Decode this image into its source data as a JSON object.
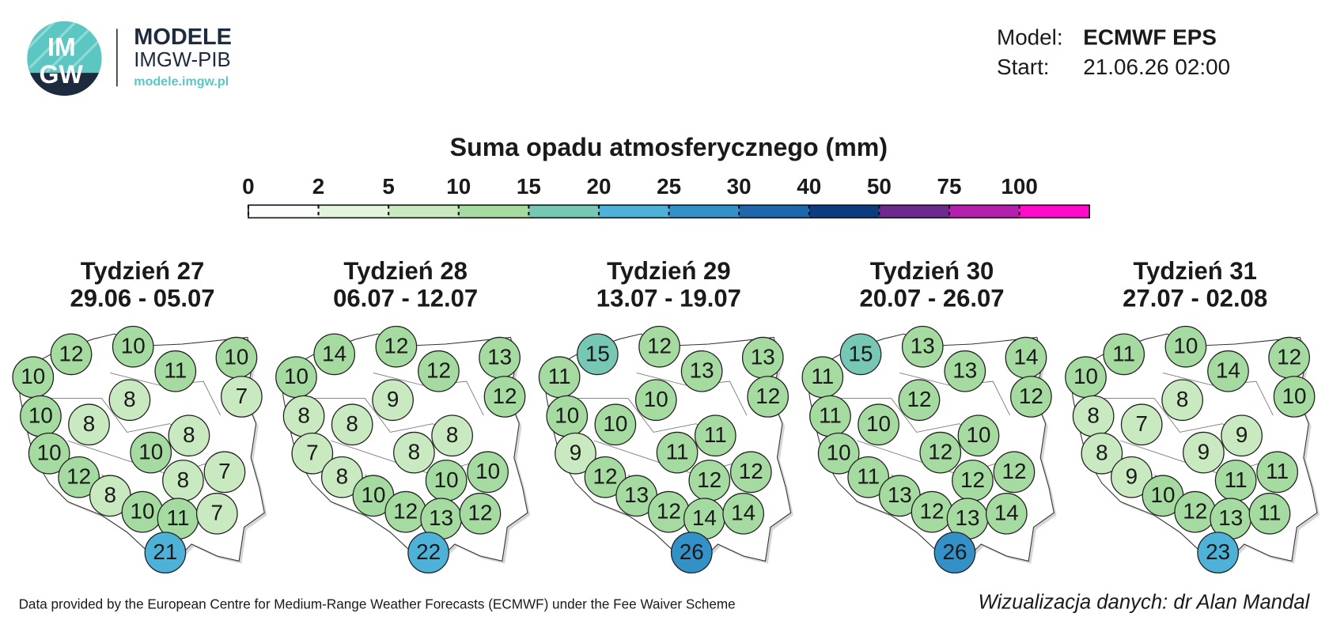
{
  "header": {
    "logo": {
      "top": "IM",
      "bottom": "GW"
    },
    "brand": "MODELE",
    "org": "IMGW-PIB",
    "url": "modele.imgw.pl",
    "model_label": "Model:",
    "model": "ECMWF EPS",
    "start_label": "Start:",
    "start": "21.06.26 02:00"
  },
  "legend": {
    "title": "Suma opadu atmosferycznego (mm)",
    "ticks": [
      0,
      2,
      5,
      10,
      15,
      20,
      25,
      30,
      40,
      50,
      75,
      100
    ],
    "colors": [
      "#fbfdfa",
      "#e3f4dd",
      "#c9eac1",
      "#a5dba0",
      "#76c8b4",
      "#4eb2d8",
      "#3391c8",
      "#1f67ad",
      "#0c3b80",
      "#6b2a8c",
      "#b51fb0",
      "#ff0acb"
    ]
  },
  "panels": [
    {
      "title": "Tydzień 27",
      "dates": "29.06 - 05.07",
      "values": [
        12,
        10,
        10,
        10,
        11,
        8,
        7,
        10,
        8,
        8,
        10,
        10,
        7,
        12,
        8,
        8,
        10,
        11,
        7,
        21
      ]
    },
    {
      "title": "Tydzień 28",
      "dates": "06.07 - 12.07",
      "values": [
        14,
        12,
        13,
        10,
        12,
        9,
        12,
        8,
        8,
        8,
        7,
        8,
        10,
        8,
        10,
        10,
        12,
        13,
        12,
        22
      ]
    },
    {
      "title": "Tydzień 29",
      "dates": "13.07 - 19.07",
      "values": [
        15,
        12,
        13,
        11,
        13,
        10,
        12,
        10,
        10,
        11,
        9,
        11,
        12,
        12,
        12,
        13,
        12,
        14,
        14,
        26
      ]
    },
    {
      "title": "Tydzień 30",
      "dates": "20.07 - 26.07",
      "values": [
        15,
        13,
        14,
        11,
        13,
        12,
        12,
        11,
        10,
        10,
        10,
        12,
        12,
        11,
        12,
        13,
        12,
        13,
        14,
        26
      ]
    },
    {
      "title": "Tydzień 31",
      "dates": "27.07 - 02.08",
      "values": [
        11,
        10,
        12,
        10,
        14,
        8,
        10,
        8,
        7,
        9,
        8,
        9,
        11,
        9,
        11,
        10,
        12,
        13,
        11,
        23
      ]
    }
  ],
  "footer": {
    "source": "Data provided by the European Centre for Medium-Range Weather Forecasts (ECMWF) under the Fee Waiver Scheme",
    "credit": "Wizualizacja danych: dr Alan Mandal"
  }
}
